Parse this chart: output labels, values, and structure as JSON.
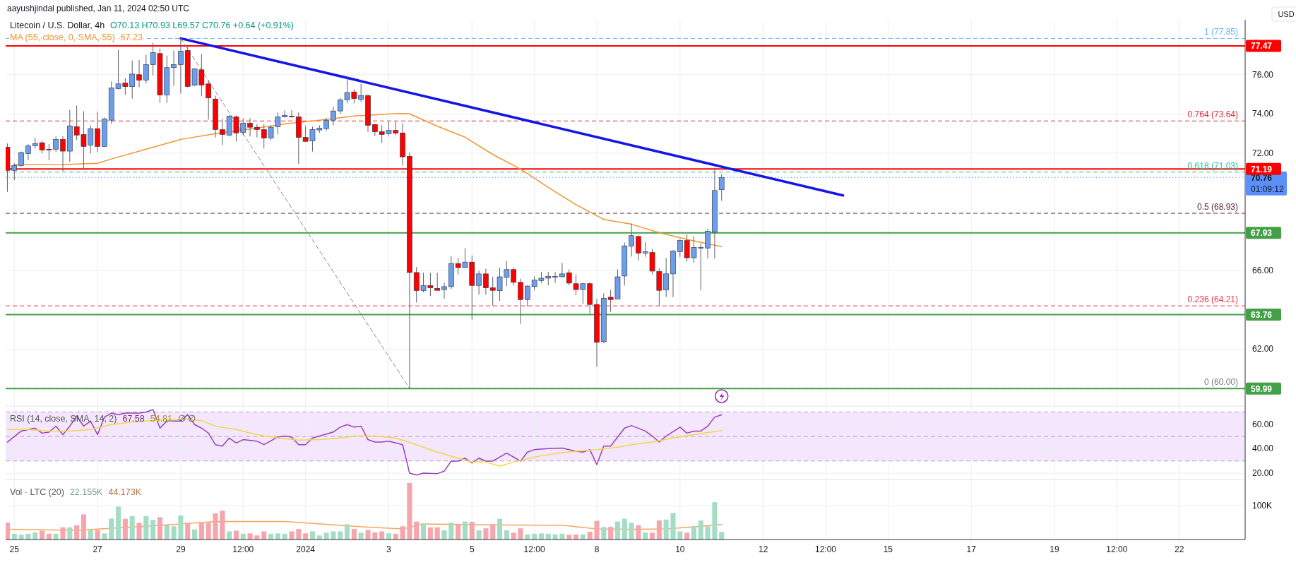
{
  "chart_data": [
    {
      "type": "candlestick",
      "title": "Litecoin / U.S. Dollar, 4h",
      "subtitle": "O70.13 H70.93 L69.57 C70.76 +0.64 (+0.91%)",
      "ylabel": "USD",
      "x": [
        "2023-12-24T20:00",
        "2023-12-25T00:00",
        "2023-12-25T04:00",
        "2023-12-25T08:00",
        "2023-12-25T12:00",
        "2023-12-25T16:00",
        "2023-12-25T20:00",
        "2023-12-26T00:00",
        "2023-12-26T04:00",
        "2023-12-26T08:00",
        "2023-12-26T12:00",
        "2023-12-26T16:00",
        "2023-12-26T20:00",
        "2023-12-27T00:00",
        "2023-12-27T04:00",
        "2023-12-27T08:00",
        "2023-12-27T12:00",
        "2023-12-27T16:00",
        "2023-12-27T20:00",
        "2023-12-28T00:00",
        "2023-12-28T04:00",
        "2023-12-28T08:00",
        "2023-12-28T12:00",
        "2023-12-28T16:00",
        "2023-12-28T20:00",
        "2023-12-29T00:00",
        "2023-12-29T04:00",
        "2023-12-29T08:00",
        "2023-12-29T12:00",
        "2023-12-29T16:00",
        "2023-12-29T20:00",
        "2023-12-30T00:00",
        "2023-12-30T04:00",
        "2023-12-30T08:00",
        "2023-12-30T12:00",
        "2023-12-30T16:00",
        "2023-12-30T20:00",
        "2023-12-31T00:00",
        "2023-12-31T04:00",
        "2023-12-31T08:00",
        "2023-12-31T12:00",
        "2023-12-31T16:00",
        "2023-12-31T20:00",
        "2024-01-01T00:00",
        "2024-01-01T04:00",
        "2024-01-01T08:00",
        "2024-01-01T12:00",
        "2024-01-01T16:00",
        "2024-01-01T20:00",
        "2024-01-02T00:00",
        "2024-01-02T04:00",
        "2024-01-02T08:00",
        "2024-01-02T12:00",
        "2024-01-02T16:00",
        "2024-01-02T20:00",
        "2024-01-03T00:00",
        "2024-01-03T04:00",
        "2024-01-03T08:00",
        "2024-01-03T12:00",
        "2024-01-03T16:00",
        "2024-01-03T20:00",
        "2024-01-04T00:00",
        "2024-01-04T04:00",
        "2024-01-04T08:00",
        "2024-01-04T12:00",
        "2024-01-04T16:00",
        "2024-01-04T20:00",
        "2024-01-05T00:00",
        "2024-01-05T04:00",
        "2024-01-05T08:00",
        "2024-01-05T12:00",
        "2024-01-05T16:00",
        "2024-01-05T20:00",
        "2024-01-06T00:00",
        "2024-01-06T04:00",
        "2024-01-06T08:00",
        "2024-01-06T12:00",
        "2024-01-06T16:00",
        "2024-01-06T20:00",
        "2024-01-07T00:00",
        "2024-01-07T04:00",
        "2024-01-07T08:00",
        "2024-01-07T12:00",
        "2024-01-07T16:00",
        "2024-01-07T20:00",
        "2024-01-08T00:00",
        "2024-01-08T04:00",
        "2024-01-08T08:00",
        "2024-01-08T12:00",
        "2024-01-08T16:00",
        "2024-01-08T20:00",
        "2024-01-09T00:00",
        "2024-01-09T04:00",
        "2024-01-09T08:00",
        "2024-01-09T12:00",
        "2024-01-09T16:00",
        "2024-01-09T20:00",
        "2024-01-10T00:00",
        "2024-01-10T04:00",
        "2024-01-10T08:00",
        "2024-01-10T12:00",
        "2024-01-10T16:00",
        "2024-01-10T20:00",
        "2024-01-11T00:00"
      ],
      "ohlc": [
        [
          72.3,
          72.49,
          70.02,
          71.12
        ],
        [
          71.12,
          71.48,
          70.62,
          71.37
        ],
        [
          71.37,
          72.08,
          71.31,
          72.03
        ],
        [
          71.97,
          72.46,
          71.63,
          72.37
        ],
        [
          72.37,
          72.78,
          72.23,
          72.49
        ],
        [
          72.53,
          72.6,
          71.98,
          72.16
        ],
        [
          72.2,
          72.46,
          71.63,
          72.16
        ],
        [
          72.2,
          72.85,
          72.06,
          72.69
        ],
        [
          72.7,
          72.87,
          71.08,
          72.1
        ],
        [
          72.1,
          74.21,
          71.55,
          73.39
        ],
        [
          73.35,
          74.43,
          72.66,
          72.92
        ],
        [
          72.95,
          74.14,
          71.19,
          72.34
        ],
        [
          72.41,
          73.42,
          71.98,
          73.25
        ],
        [
          73.25,
          74.11,
          72.06,
          72.34
        ],
        [
          72.34,
          73.81,
          72.34,
          73.75
        ],
        [
          73.68,
          75.65,
          73.49,
          75.32
        ],
        [
          75.29,
          77.26,
          75.24,
          75.53
        ],
        [
          75.57,
          75.82,
          74.97,
          75.39
        ],
        [
          75.39,
          76.72,
          74.78,
          76.03
        ],
        [
          76.0,
          76.75,
          75.36,
          75.72
        ],
        [
          75.72,
          77.01,
          75.55,
          76.51
        ],
        [
          76.51,
          77.63,
          75.96,
          77.13
        ],
        [
          77.08,
          77.34,
          74.57,
          74.96
        ],
        [
          74.97,
          76.98,
          74.57,
          76.36
        ],
        [
          76.36,
          77.23,
          75.43,
          76.51
        ],
        [
          76.51,
          77.85,
          75.04,
          77.2
        ],
        [
          77.23,
          77.4,
          75.36,
          75.4
        ],
        [
          75.46,
          76.32,
          75.43,
          76.29
        ],
        [
          76.25,
          77.05,
          74.9,
          75.47
        ],
        [
          75.53,
          75.72,
          73.71,
          74.81
        ],
        [
          74.76,
          74.93,
          72.8,
          73.2
        ],
        [
          73.2,
          73.75,
          72.41,
          72.95
        ],
        [
          72.92,
          73.95,
          72.89,
          73.88
        ],
        [
          73.85,
          73.92,
          72.59,
          73.03
        ],
        [
          73.06,
          73.78,
          72.92,
          73.52
        ],
        [
          73.52,
          73.78,
          72.85,
          73.32
        ],
        [
          73.32,
          73.49,
          72.8,
          73.2
        ],
        [
          73.2,
          73.49,
          72.23,
          72.77
        ],
        [
          72.77,
          73.42,
          72.66,
          73.32
        ],
        [
          73.35,
          74.07,
          72.95,
          73.85
        ],
        [
          73.85,
          74.17,
          73.81,
          73.92
        ],
        [
          73.89,
          74.18,
          73.81,
          73.86
        ],
        [
          73.85,
          74.07,
          71.45,
          72.8
        ],
        [
          72.8,
          73.38,
          72.56,
          72.6
        ],
        [
          72.63,
          73.35,
          72.08,
          73.2
        ],
        [
          73.18,
          73.42,
          73.03,
          73.28
        ],
        [
          73.25,
          73.78,
          73.13,
          73.68
        ],
        [
          73.68,
          74.38,
          73.42,
          74.15
        ],
        [
          74.15,
          74.81,
          74.0,
          74.72
        ],
        [
          74.72,
          75.93,
          74.54,
          75.09
        ],
        [
          75.12,
          75.26,
          74.54,
          74.78
        ],
        [
          74.74,
          75.53,
          74.61,
          74.93
        ],
        [
          74.93,
          75.0,
          73.09,
          73.42
        ],
        [
          73.46,
          73.49,
          72.87,
          73.09
        ],
        [
          73.1,
          73.42,
          72.52,
          72.95
        ],
        [
          72.99,
          73.61,
          72.85,
          73.16
        ],
        [
          73.16,
          73.61,
          72.92,
          73.02
        ],
        [
          73.03,
          73.52,
          71.37,
          71.81
        ],
        [
          71.84,
          72.03,
          60.0,
          65.91
        ],
        [
          65.91,
          66.19,
          64.38,
          64.99
        ],
        [
          64.99,
          65.9,
          64.9,
          65.25
        ],
        [
          65.25,
          65.9,
          64.71,
          65.13
        ],
        [
          65.1,
          65.9,
          65.0,
          65.0
        ],
        [
          65.04,
          65.4,
          64.56,
          65.19
        ],
        [
          65.19,
          66.75,
          65.06,
          66.37
        ],
        [
          66.37,
          66.66,
          65.81,
          66.16
        ],
        [
          66.16,
          67.15,
          66.16,
          66.44
        ],
        [
          66.44,
          66.78,
          63.5,
          65.25
        ],
        [
          65.25,
          66.0,
          64.78,
          65.84
        ],
        [
          65.84,
          66.1,
          64.78,
          65.13
        ],
        [
          65.13,
          65.69,
          64.21,
          65.0
        ],
        [
          64.98,
          66.15,
          64.46,
          65.69
        ],
        [
          65.66,
          66.5,
          65.22,
          66.06
        ],
        [
          66.06,
          66.15,
          65.25,
          65.41
        ],
        [
          65.41,
          65.6,
          63.29,
          64.53
        ],
        [
          64.53,
          65.25,
          64.16,
          65.22
        ],
        [
          65.19,
          65.71,
          65.0,
          65.53
        ],
        [
          65.5,
          65.94,
          65.38,
          65.62
        ],
        [
          65.62,
          65.94,
          65.25,
          65.71
        ],
        [
          65.69,
          65.94,
          65.38,
          65.71
        ],
        [
          65.69,
          66.4,
          65.69,
          65.84
        ],
        [
          65.9,
          66.06,
          65.25,
          65.37
        ],
        [
          65.34,
          65.81,
          64.75,
          65.04
        ],
        [
          65.04,
          65.37,
          64.31,
          65.34
        ],
        [
          65.34,
          65.41,
          63.81,
          64.28
        ],
        [
          64.28,
          64.56,
          61.1,
          62.35
        ],
        [
          62.38,
          64.85,
          62.31,
          64.6
        ],
        [
          64.65,
          65.03,
          63.9,
          64.53
        ],
        [
          64.56,
          66.06,
          64.56,
          65.69
        ],
        [
          65.73,
          67.44,
          65.25,
          67.27
        ],
        [
          67.25,
          68.41,
          66.72,
          67.79
        ],
        [
          67.75,
          67.81,
          66.52,
          66.9
        ],
        [
          66.9,
          67.46,
          66.71,
          66.97
        ],
        [
          66.93,
          67.12,
          65.81,
          65.98
        ],
        [
          65.96,
          66.12,
          64.21,
          65.0
        ],
        [
          65.03,
          66.66,
          64.66,
          65.84
        ],
        [
          65.84,
          67.06,
          64.66,
          67.0
        ],
        [
          66.97,
          67.62,
          66.69,
          67.54
        ],
        [
          67.54,
          67.85,
          66.47,
          66.66
        ],
        [
          66.66,
          67.77,
          66.41,
          67.19
        ],
        [
          67.16,
          67.4,
          65.0,
          67.19
        ],
        [
          67.16,
          68.15,
          66.62,
          68.02
        ],
        [
          67.97,
          71.25,
          66.62,
          70.09
        ],
        [
          70.13,
          70.93,
          69.57,
          70.76
        ]
      ],
      "series": [
        {
          "name": "MA (55, close, 0, SMA, 55)",
          "type": "line",
          "color": "#f0952f",
          "x": [
            "2023-12-25T00:00",
            "2023-12-26T04:00",
            "2023-12-27T00:00",
            "2023-12-27T08:00",
            "2023-12-28T04:00",
            "2023-12-29T00:00",
            "2023-12-29T20:00",
            "2023-12-30T16:00",
            "2023-12-31T12:00",
            "2024-01-01T08:00",
            "2024-01-02T04:00",
            "2024-01-03T00:00",
            "2024-01-03T08:00",
            "2024-01-03T12:00",
            "2024-01-04T04:00",
            "2024-01-04T20:00",
            "2024-01-05T12:00",
            "2024-01-06T04:00",
            "2024-01-06T20:00",
            "2024-01-07T12:00",
            "2024-01-08T04:00",
            "2024-01-08T20:00",
            "2024-01-09T12:00",
            "2024-01-10T04:00",
            "2024-01-11T00:00"
          ],
          "values": [
            71.41,
            71.42,
            71.48,
            71.7,
            72.2,
            72.7,
            72.99,
            73.23,
            73.49,
            73.68,
            73.89,
            73.99,
            74.02,
            74.0,
            73.37,
            72.81,
            71.93,
            71.19,
            70.25,
            69.37,
            68.62,
            68.37,
            67.94,
            67.6,
            67.23
          ]
        },
        {
          "type": "line",
          "color": "#1515e6",
          "x": [
            "2023-12-29T00:00",
            "2024-01-13T22:00"
          ],
          "values": [
            77.85,
            69.84
          ]
        },
        {
          "type": "line",
          "color": "#8a8a8a",
          "line_style": "dashed",
          "x": [
            "2023-12-29T00:00",
            "2024-01-03T12:00"
          ],
          "values": [
            77.85,
            60.0
          ]
        }
      ],
      "ref_lines": [
        {
          "axis": "y",
          "value": 77.85,
          "label": "1 (77.85)",
          "color": "#64b5f6",
          "line_style": "dashed"
        },
        {
          "axis": "y",
          "value": 73.64,
          "label": "0.764 (73.64)",
          "color": "#e0303a",
          "line_style": "dashed"
        },
        {
          "axis": "y",
          "value": 71.03,
          "label": "0.618 (71.03)",
          "color": "#22c79a",
          "line_style": "dashed"
        },
        {
          "axis": "y",
          "value": 68.93,
          "label": "0.5 (68.93)",
          "color": "#5d2a42",
          "line_style": "dashed"
        },
        {
          "axis": "y",
          "value": 64.21,
          "label": "0.236 (64.21)",
          "color": "#f23645",
          "line_style": "dashed"
        },
        {
          "axis": "y",
          "value": 60.0,
          "label": "0 (60.00)",
          "color": "#787b86",
          "line_style": "dashed"
        },
        {
          "axis": "y",
          "value": 70.76,
          "label": "70.76",
          "color": "#5b8ff9",
          "line_style": "dotted"
        },
        {
          "axis": "y",
          "value": 77.47,
          "label": "77.47",
          "color": "#ff0000"
        },
        {
          "axis": "y",
          "value": 71.19,
          "label": "71.19",
          "color": "#ff0000"
        },
        {
          "axis": "y",
          "value": 67.93,
          "label": "67.93",
          "color": "#43a047"
        },
        {
          "axis": "y",
          "value": 63.76,
          "label": "63.76",
          "color": "#43a047"
        },
        {
          "axis": "y",
          "value": 59.99,
          "label": "59.99",
          "color": "#43a047"
        }
      ],
      "annotations": [
        "aayushjindal published, Jan 11, 2024 02:50 UTC",
        "67.23",
        "01:09:12"
      ],
      "xlim": [
        "2023-12-24T19:00",
        "2024-01-23T14:00"
      ],
      "xticks": [
        {
          "value": "2023-12-25",
          "label": null
        },
        {
          "value": "2023-12-27",
          "label": null
        },
        {
          "value": "2023-12-29",
          "label": null
        },
        {
          "value": "2023-12-30T12:00",
          "label": null
        },
        {
          "value": "2024-01-01",
          "label": null
        },
        {
          "value": "2024-01-03",
          "label": null
        },
        {
          "value": "2024-01-05",
          "label": null
        },
        {
          "value": "2024-01-06T12:00",
          "label": null
        },
        {
          "value": "2024-01-08",
          "label": null
        },
        {
          "value": "2024-01-10",
          "label": null
        },
        {
          "value": "2024-01-12",
          "label": null
        },
        {
          "value": "2024-01-13T12:00",
          "label": null
        },
        {
          "value": "2024-01-15",
          "label": null
        },
        {
          "value": "2024-01-17",
          "label": null
        },
        {
          "value": "2024-01-19",
          "label": null
        },
        {
          "value": "2024-01-20T12:00",
          "label": null
        },
        {
          "value": "2024-01-22",
          "label": null
        }
      ],
      "ylim": [
        59.1,
        78.8
      ],
      "yticks": [
        {
          "value": 62,
          "label": "62.00"
        },
        {
          "value": 66,
          "label": "66.00"
        },
        {
          "value": 72,
          "label": "72.00"
        },
        {
          "value": 74,
          "label": "74.00"
        },
        {
          "value": 76,
          "label": "76.00"
        }
      ],
      "grid": true,
      "tick_labels": "y"
    },
    {
      "type": "line",
      "title": "RSI (14, close, SMA, 14, 2)",
      "series": [
        {
          "type": "line",
          "color": "#9c3fb8",
          "x": [
            "2023-12-24T20:00",
            "2023-12-25T04:00",
            "2023-12-25T12:00",
            "2023-12-25T16:00",
            "2023-12-25T20:00",
            "2023-12-26T00:00",
            "2023-12-26T04:00",
            "2023-12-26T08:00",
            "2023-12-26T12:00",
            "2023-12-26T16:00",
            "2023-12-26T20:00",
            "2023-12-27T00:00",
            "2023-12-27T04:00",
            "2023-12-27T08:00",
            "2023-12-27T12:00",
            "2023-12-27T16:00",
            "2023-12-28T00:00",
            "2023-12-28T04:00",
            "2023-12-28T08:00",
            "2023-12-28T12:00",
            "2023-12-28T16:00",
            "2023-12-29T00:00",
            "2023-12-29T04:00",
            "2023-12-29T08:00",
            "2023-12-29T12:00",
            "2023-12-29T16:00",
            "2023-12-29T20:00",
            "2023-12-30T00:00",
            "2023-12-30T04:00",
            "2023-12-30T08:00",
            "2023-12-30T12:00",
            "2023-12-30T20:00",
            "2023-12-31T00:00",
            "2023-12-31T08:00",
            "2023-12-31T12:00",
            "2023-12-31T16:00",
            "2023-12-31T20:00",
            "2024-01-01T00:00",
            "2024-01-01T04:00",
            "2024-01-01T08:00",
            "2024-01-01T16:00",
            "2024-01-01T20:00",
            "2024-01-02T00:00",
            "2024-01-02T04:00",
            "2024-01-02T08:00",
            "2024-01-02T12:00",
            "2024-01-02T16:00",
            "2024-01-02T20:00",
            "2024-01-03T00:00",
            "2024-01-03T08:00",
            "2024-01-03T12:00",
            "2024-01-03T16:00",
            "2024-01-03T20:00",
            "2024-01-04T04:00",
            "2024-01-04T08:00",
            "2024-01-04T12:00",
            "2024-01-04T16:00",
            "2024-01-04T20:00",
            "2024-01-05T00:00",
            "2024-01-05T04:00",
            "2024-01-05T08:00",
            "2024-01-05T12:00",
            "2024-01-05T20:00",
            "2024-01-06T00:00",
            "2024-01-06T04:00",
            "2024-01-06T08:00",
            "2024-01-06T12:00",
            "2024-01-06T20:00",
            "2024-01-07T04:00",
            "2024-01-07T12:00",
            "2024-01-07T16:00",
            "2024-01-07T20:00",
            "2024-01-08T00:00",
            "2024-01-08T04:00",
            "2024-01-08T08:00",
            "2024-01-08T12:00",
            "2024-01-08T16:00",
            "2024-01-08T20:00",
            "2024-01-09T04:00",
            "2024-01-09T08:00",
            "2024-01-09T12:00",
            "2024-01-09T16:00",
            "2024-01-10T00:00",
            "2024-01-10T04:00",
            "2024-01-10T08:00",
            "2024-01-10T12:00",
            "2024-01-10T16:00",
            "2024-01-10T20:00",
            "2024-01-11T00:00"
          ],
          "values": [
            45.4,
            54.4,
            56.8,
            52.7,
            53.5,
            58.4,
            51.5,
            58.4,
            66.6,
            58.4,
            62.5,
            51.5,
            65.8,
            69.0,
            67.8,
            69.0,
            69.0,
            69.9,
            71.9,
            56.8,
            62.5,
            62.5,
            67.8,
            59.7,
            56.8,
            52.7,
            43.3,
            42.1,
            48.7,
            44.6,
            47.4,
            46.2,
            43.3,
            49.5,
            50.3,
            49.5,
            43.3,
            43.3,
            48.7,
            50.3,
            53.6,
            57.6,
            59.7,
            57.6,
            58.4,
            47.4,
            45.4,
            45.4,
            46.2,
            43.3,
            20.1,
            18.5,
            20.1,
            19.7,
            21.7,
            29.9,
            29.9,
            32.3,
            28.3,
            32.3,
            29.9,
            29.9,
            36.4,
            33.2,
            29.9,
            37.2,
            39.3,
            40.1,
            40.5,
            38.0,
            37.2,
            39.3,
            27.0,
            42.1,
            42.1,
            49.5,
            56.8,
            58.9,
            54.4,
            50.3,
            45.4,
            50.3,
            57.6,
            52.7,
            54.4,
            54.4,
            58.4,
            65.8,
            67.58
          ]
        },
        {
          "type": "line",
          "color": "#f2d54a",
          "x": [
            "2023-12-24T20:00",
            "2023-12-25T08:00",
            "2023-12-25T20:00",
            "2023-12-26T08:00",
            "2023-12-26T20:00",
            "2023-12-27T08:00",
            "2023-12-27T20:00",
            "2023-12-28T04:00",
            "2023-12-28T16:00",
            "2023-12-29T04:00",
            "2023-12-29T12:00",
            "2023-12-29T20:00",
            "2023-12-30T08:00",
            "2023-12-30T20:00",
            "2023-12-31T08:00",
            "2023-12-31T20:00",
            "2024-01-01T08:00",
            "2024-01-01T20:00",
            "2024-01-02T04:00",
            "2024-01-02T16:00",
            "2024-01-03T04:00",
            "2024-01-03T16:00",
            "2024-01-04T04:00",
            "2024-01-04T16:00",
            "2024-01-05T00:00",
            "2024-01-05T08:00",
            "2024-01-05T16:00",
            "2024-01-06T00:00",
            "2024-01-06T12:00",
            "2024-01-07T00:00",
            "2024-01-07T12:00",
            "2024-01-08T00:00",
            "2024-01-08T12:00",
            "2024-01-08T20:00",
            "2024-01-09T08:00",
            "2024-01-09T20:00",
            "2024-01-10T08:00",
            "2024-01-11T00:00"
          ],
          "values": [
            55.6,
            55.6,
            54.4,
            54.4,
            55.6,
            59.7,
            61.7,
            62.5,
            63.7,
            63.7,
            62.9,
            58.4,
            55.6,
            51.5,
            48.7,
            47.0,
            47.4,
            48.7,
            50.3,
            50.3,
            48.7,
            43.3,
            37.2,
            32.3,
            29.1,
            29.1,
            25.8,
            29.1,
            33.2,
            36.0,
            38.0,
            39.3,
            41.3,
            43.3,
            45.4,
            48.7,
            51.5,
            54.81
          ]
        }
      ],
      "annotations": [
        "67.58",
        "54.81",
        "∅ ∅"
      ],
      "bands": [
        {
          "axis": "y",
          "from": 30,
          "to": 70,
          "color": "#f3e6fd"
        }
      ],
      "ref_lines": [
        {
          "axis": "y",
          "value": 70,
          "color": "#b0a8bb",
          "line_style": "dashed"
        },
        {
          "axis": "y",
          "value": 50,
          "color": "#b0a8bb",
          "line_style": "dashed"
        },
        {
          "axis": "y",
          "value": 30,
          "color": "#b0a8bb",
          "line_style": "dashed"
        }
      ],
      "xlim": [
        "2023-12-24T19:00",
        "2024-01-23T14:00"
      ],
      "xticks": [
        {
          "value": "2023-12-25",
          "label": null
        },
        {
          "value": "2023-12-27",
          "label": null
        },
        {
          "value": "2023-12-29",
          "label": null
        },
        {
          "value": "2023-12-30T12:00",
          "label": null
        },
        {
          "value": "2024-01-01",
          "label": null
        },
        {
          "value": "2024-01-03",
          "label": null
        },
        {
          "value": "2024-01-05",
          "label": null
        },
        {
          "value": "2024-01-06T12:00",
          "label": null
        },
        {
          "value": "2024-01-08",
          "label": null
        },
        {
          "value": "2024-01-10",
          "label": null
        },
        {
          "value": "2024-01-12",
          "label": null
        },
        {
          "value": "2024-01-13T12:00",
          "label": null
        },
        {
          "value": "2024-01-15",
          "label": null
        },
        {
          "value": "2024-01-17",
          "label": null
        },
        {
          "value": "2024-01-19",
          "label": null
        },
        {
          "value": "2024-01-20T12:00",
          "label": null
        },
        {
          "value": "2024-01-22",
          "label": null
        }
      ],
      "ylim": [
        14.9,
        74.8
      ],
      "yticks": [
        {
          "value": 20,
          "label": "20.00"
        },
        {
          "value": 40,
          "label": "40.00"
        },
        {
          "value": 60,
          "label": "60.00"
        }
      ],
      "grid": true,
      "tick_labels": "y"
    },
    {
      "type": "bar",
      "title": "Vol · LTC (20)",
      "x": [
        "2023-12-24T20:00",
        "2023-12-25T00:00",
        "2023-12-25T04:00",
        "2023-12-25T08:00",
        "2023-12-25T12:00",
        "2023-12-25T16:00",
        "2023-12-25T20:00",
        "2023-12-26T00:00",
        "2023-12-26T04:00",
        "2023-12-26T08:00",
        "2023-12-26T12:00",
        "2023-12-26T16:00",
        "2023-12-26T20:00",
        "2023-12-27T00:00",
        "2023-12-27T04:00",
        "2023-12-27T08:00",
        "2023-12-27T12:00",
        "2023-12-27T16:00",
        "2023-12-27T20:00",
        "2023-12-28T00:00",
        "2023-12-28T04:00",
        "2023-12-28T08:00",
        "2023-12-28T12:00",
        "2023-12-28T16:00",
        "2023-12-28T20:00",
        "2023-12-29T00:00",
        "2023-12-29T04:00",
        "2023-12-29T08:00",
        "2023-12-29T12:00",
        "2023-12-29T16:00",
        "2023-12-29T20:00",
        "2023-12-30T00:00",
        "2023-12-30T04:00",
        "2023-12-30T08:00",
        "2023-12-30T12:00",
        "2023-12-30T16:00",
        "2023-12-30T20:00",
        "2023-12-31T00:00",
        "2023-12-31T04:00",
        "2023-12-31T08:00",
        "2023-12-31T12:00",
        "2023-12-31T16:00",
        "2023-12-31T20:00",
        "2024-01-01T00:00",
        "2024-01-01T04:00",
        "2024-01-01T08:00",
        "2024-01-01T12:00",
        "2024-01-01T16:00",
        "2024-01-01T20:00",
        "2024-01-02T00:00",
        "2024-01-02T04:00",
        "2024-01-02T08:00",
        "2024-01-02T12:00",
        "2024-01-02T16:00",
        "2024-01-02T20:00",
        "2024-01-03T00:00",
        "2024-01-03T04:00",
        "2024-01-03T08:00",
        "2024-01-03T12:00",
        "2024-01-03T16:00",
        "2024-01-03T20:00",
        "2024-01-04T00:00",
        "2024-01-04T04:00",
        "2024-01-04T08:00",
        "2024-01-04T12:00",
        "2024-01-04T16:00",
        "2024-01-04T20:00",
        "2024-01-05T00:00",
        "2024-01-05T04:00",
        "2024-01-05T08:00",
        "2024-01-05T12:00",
        "2024-01-05T16:00",
        "2024-01-05T20:00",
        "2024-01-06T00:00",
        "2024-01-06T04:00",
        "2024-01-06T08:00",
        "2024-01-06T12:00",
        "2024-01-06T16:00",
        "2024-01-06T20:00",
        "2024-01-07T00:00",
        "2024-01-07T04:00",
        "2024-01-07T08:00",
        "2024-01-07T12:00",
        "2024-01-07T16:00",
        "2024-01-07T20:00",
        "2024-01-08T00:00",
        "2024-01-08T04:00",
        "2024-01-08T08:00",
        "2024-01-08T12:00",
        "2024-01-08T16:00",
        "2024-01-08T20:00",
        "2024-01-09T00:00",
        "2024-01-09T04:00",
        "2024-01-09T08:00",
        "2024-01-09T12:00",
        "2024-01-09T16:00",
        "2024-01-09T20:00",
        "2024-01-10T00:00",
        "2024-01-10T04:00",
        "2024-01-10T08:00",
        "2024-01-10T12:00",
        "2024-01-10T16:00",
        "2024-01-10T20:00",
        "2024-01-11T00:00"
      ],
      "values": [
        50,
        17,
        14,
        17,
        21,
        26,
        17,
        17,
        36,
        36,
        42,
        74,
        28,
        28,
        18,
        62,
        97,
        61,
        69,
        49,
        69,
        58,
        66,
        42,
        39,
        71,
        49,
        30,
        49,
        49,
        77,
        85,
        24,
        26,
        17,
        18,
        12,
        24,
        17,
        18,
        17,
        24,
        31,
        18,
        24,
        12,
        20,
        24,
        24,
        45,
        31,
        20,
        28,
        21,
        24,
        18,
        17,
        39,
        167,
        53,
        48,
        36,
        36,
        27,
        50,
        45,
        53,
        52,
        27,
        33,
        45,
        61,
        27,
        20,
        33,
        15,
        17,
        18,
        17,
        15,
        17,
        14,
        15,
        15,
        23,
        55,
        37,
        37,
        53,
        61,
        49,
        42,
        21,
        20,
        56,
        59,
        78,
        24,
        20,
        40,
        56,
        39,
        110,
        22.155
      ],
      "colors": [
        "#f5a5ab",
        "#a5dcc6",
        "#a5dcc6",
        "#a5dcc6",
        "#a5dcc6",
        "#f5a5ab",
        "#f5a5ab",
        "#a5dcc6",
        "#f5a5ab",
        "#a5dcc6",
        "#f5a5ab",
        "#f5a5ab",
        "#a5dcc6",
        "#f5a5ab",
        "#a5dcc6",
        "#a5dcc6",
        "#a5dcc6",
        "#f5a5ab",
        "#a5dcc6",
        "#f5a5ab",
        "#a5dcc6",
        "#a5dcc6",
        "#f5a5ab",
        "#a5dcc6",
        "#a5dcc6",
        "#a5dcc6",
        "#f5a5ab",
        "#a5dcc6",
        "#f5a5ab",
        "#f5a5ab",
        "#f5a5ab",
        "#f5a5ab",
        "#a5dcc6",
        "#f5a5ab",
        "#a5dcc6",
        "#f5a5ab",
        "#f5a5ab",
        "#f5a5ab",
        "#a5dcc6",
        "#a5dcc6",
        "#a5dcc6",
        "#f5a5ab",
        "#f5a5ab",
        "#f5a5ab",
        "#a5dcc6",
        "#a5dcc6",
        "#a5dcc6",
        "#a5dcc6",
        "#a5dcc6",
        "#a5dcc6",
        "#f5a5ab",
        "#a5dcc6",
        "#f5a5ab",
        "#f5a5ab",
        "#f5a5ab",
        "#a5dcc6",
        "#f5a5ab",
        "#f5a5ab",
        "#f5a5ab",
        "#f5a5ab",
        "#a5dcc6",
        "#f5a5ab",
        "#f5a5ab",
        "#a5dcc6",
        "#a5dcc6",
        "#f5a5ab",
        "#a5dcc6",
        "#f5a5ab",
        "#a5dcc6",
        "#f5a5ab",
        "#f5a5ab",
        "#a5dcc6",
        "#a5dcc6",
        "#f5a5ab",
        "#f5a5ab",
        "#a5dcc6",
        "#a5dcc6",
        "#a5dcc6",
        "#a5dcc6",
        "#a5dcc6",
        "#a5dcc6",
        "#f5a5ab",
        "#f5a5ab",
        "#a5dcc6",
        "#f5a5ab",
        "#f5a5ab",
        "#a5dcc6",
        "#f5a5ab",
        "#a5dcc6",
        "#a5dcc6",
        "#a5dcc6",
        "#f5a5ab",
        "#a5dcc6",
        "#f5a5ab",
        "#f5a5ab",
        "#a5dcc6",
        "#a5dcc6",
        "#a5dcc6",
        "#f5a5ab",
        "#a5dcc6",
        "#a5dcc6",
        "#a5dcc6",
        "#a5dcc6",
        "#a5dcc6"
      ],
      "series": [
        {
          "type": "line",
          "color": "#f7a55a",
          "x": [
            "2023-12-24T20:00",
            "2023-12-26T12:00",
            "2023-12-28T04:00",
            "2023-12-29T20:00",
            "2023-12-31T12:00",
            "2024-01-02T04:00",
            "2024-01-03T08:00",
            "2024-01-03T20:00",
            "2024-01-05T12:00",
            "2024-01-07T04:00",
            "2024-01-08T00:00",
            "2024-01-08T20:00",
            "2024-01-09T16:00",
            "2024-01-10T12:00",
            "2024-01-11T00:00"
          ],
          "values": [
            30,
            27,
            39,
            53,
            53,
            39,
            31,
            46,
            43,
            42,
            31,
            30,
            31,
            39,
            44.173
          ]
        }
      ],
      "annotations": [
        "22.155K",
        "44.173K"
      ],
      "xlim": [
        "2023-12-24T19:00",
        "2024-01-23T14:00"
      ],
      "xticks": [
        {
          "value": "2023-12-25",
          "label": "25"
        },
        {
          "value": "2023-12-27",
          "label": "27"
        },
        {
          "value": "2023-12-29",
          "label": "29"
        },
        {
          "value": "2023-12-30T12:00",
          "label": "12:00"
        },
        {
          "value": "2024-01-01",
          "label": "2024"
        },
        {
          "value": "2024-01-03",
          "label": "3"
        },
        {
          "value": "2024-01-05",
          "label": "5"
        },
        {
          "value": "2024-01-06T12:00",
          "label": "12:00"
        },
        {
          "value": "2024-01-08",
          "label": "8"
        },
        {
          "value": "2024-01-10",
          "label": "10"
        },
        {
          "value": "2024-01-12",
          "label": "12"
        },
        {
          "value": "2024-01-13T12:00",
          "label": "12:00"
        },
        {
          "value": "2024-01-15",
          "label": "15"
        },
        {
          "value": "2024-01-17",
          "label": "17"
        },
        {
          "value": "2024-01-19",
          "label": "19"
        },
        {
          "value": "2024-01-20T12:00",
          "label": "12:00"
        },
        {
          "value": "2024-01-22",
          "label": "22"
        }
      ],
      "ylim": [
        0,
        177
      ],
      "yticks": [
        {
          "value": 100,
          "label": "100K"
        }
      ],
      "grid": true
    }
  ]
}
